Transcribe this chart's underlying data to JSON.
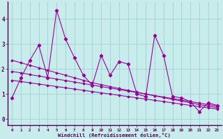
{
  "x": [
    0,
    1,
    2,
    3,
    4,
    5,
    6,
    7,
    8,
    9,
    10,
    11,
    12,
    13,
    14,
    15,
    16,
    17,
    18,
    19,
    20,
    21,
    22,
    23
  ],
  "y_main": [
    0.85,
    1.65,
    2.35,
    2.95,
    1.65,
    4.35,
    3.2,
    2.45,
    1.75,
    1.35,
    2.55,
    1.75,
    2.3,
    2.2,
    1.0,
    0.9,
    3.35,
    2.55,
    0.9,
    0.85,
    0.7,
    0.3,
    0.65,
    0.55
  ],
  "y_trend1": [
    2.35,
    2.25,
    2.15,
    2.05,
    1.95,
    1.85,
    1.75,
    1.65,
    1.55,
    1.45,
    1.38,
    1.3,
    1.22,
    1.15,
    1.08,
    1.0,
    0.93,
    0.86,
    0.79,
    0.72,
    0.65,
    0.58,
    0.52,
    0.46
  ],
  "y_trend2": [
    1.9,
    1.85,
    1.78,
    1.72,
    1.66,
    1.6,
    1.54,
    1.48,
    1.42,
    1.36,
    1.3,
    1.24,
    1.18,
    1.12,
    1.06,
    1.0,
    0.94,
    0.88,
    0.82,
    0.76,
    0.7,
    0.64,
    0.58,
    0.52
  ],
  "y_trend3": [
    1.55,
    1.5,
    1.45,
    1.4,
    1.35,
    1.3,
    1.25,
    1.2,
    1.15,
    1.1,
    1.05,
    1.0,
    0.95,
    0.9,
    0.85,
    0.8,
    0.75,
    0.7,
    0.65,
    0.6,
    0.55,
    0.5,
    0.45,
    0.4
  ],
  "line_color": "#990099",
  "bg_color": "#c8ecec",
  "grid_color": "#a0d0d0",
  "xlabel": "Windchill (Refroidissement éolien,°C)",
  "ylim": [
    -0.25,
    4.7
  ],
  "xlim": [
    -0.5,
    23.5
  ],
  "yticks": [
    0,
    1,
    2,
    3,
    4
  ],
  "xticks": [
    0,
    1,
    2,
    3,
    4,
    5,
    6,
    7,
    8,
    9,
    10,
    11,
    12,
    13,
    14,
    15,
    16,
    17,
    18,
    19,
    20,
    21,
    22,
    23
  ]
}
